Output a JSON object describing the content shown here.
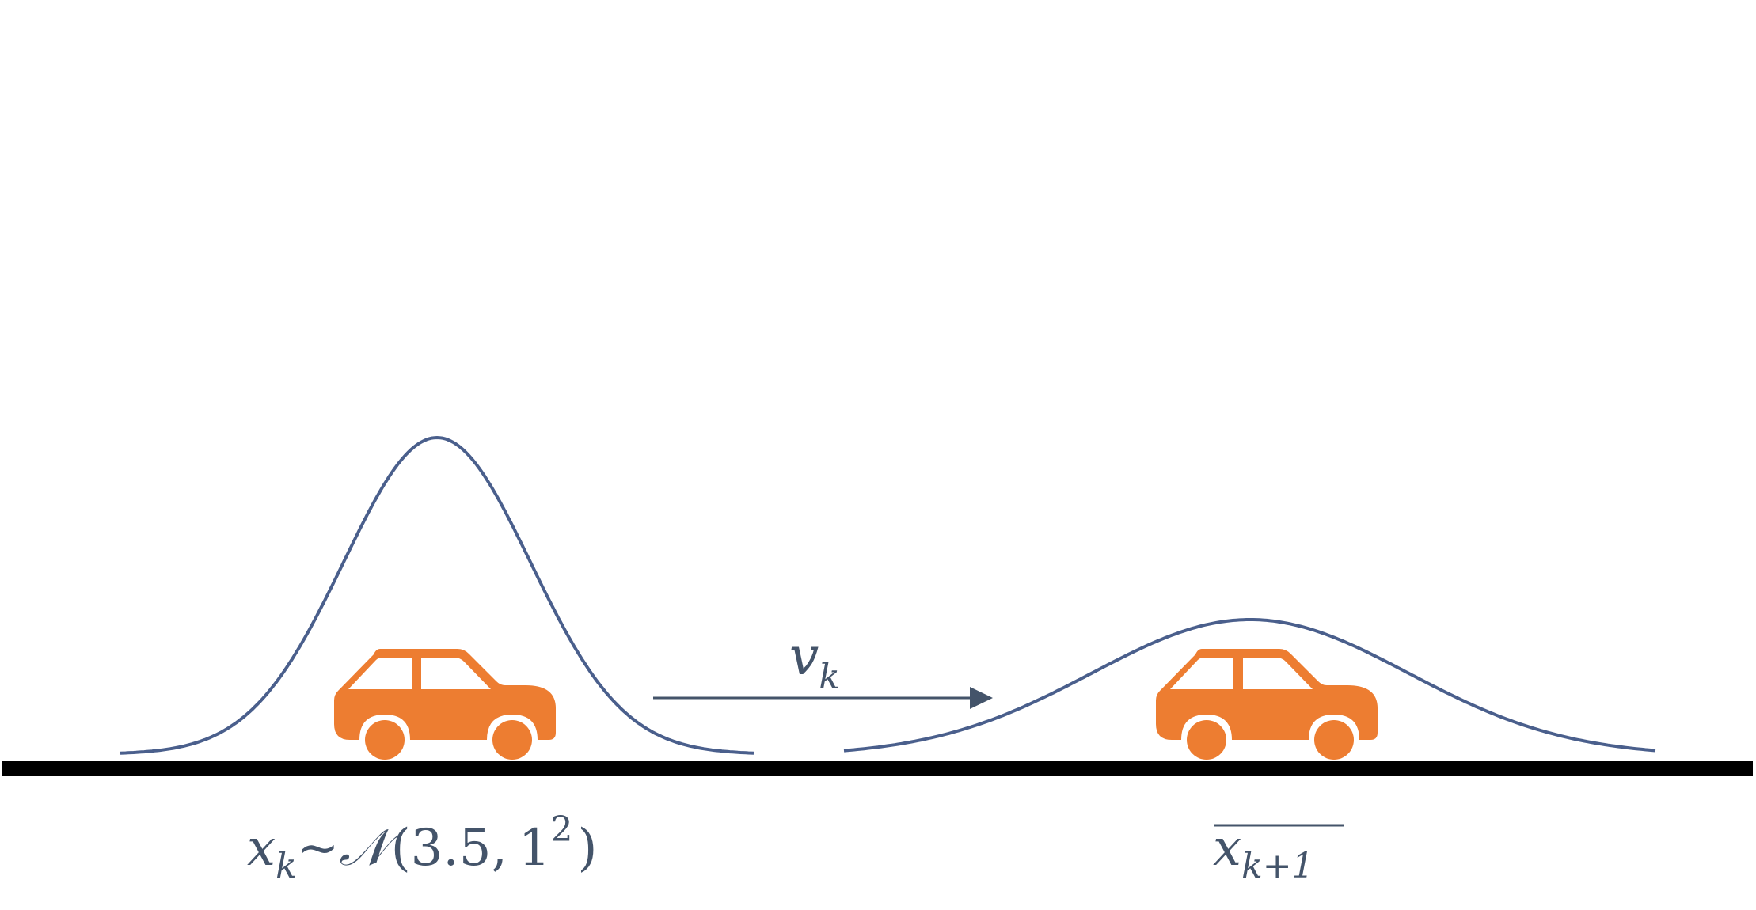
{
  "colors": {
    "curve": "#4a5f8c",
    "car": "#ed7d31",
    "ground": "#000000",
    "arrow": "#44546a",
    "label": "#44546a",
    "background": "#ffffff"
  },
  "icons": [
    "car-icon",
    "car-icon"
  ],
  "labels": {
    "velocity": {
      "base": "v",
      "sub": "k"
    },
    "prior": {
      "base": "x",
      "sub": "k",
      "relation": "~",
      "dist": "𝒩",
      "open": "(",
      "mean": "3.5",
      "comma": ",",
      "var_base": "1",
      "var_exp": "2",
      "close": ")"
    },
    "predicted": {
      "base": "x",
      "sub": "k+1"
    }
  }
}
